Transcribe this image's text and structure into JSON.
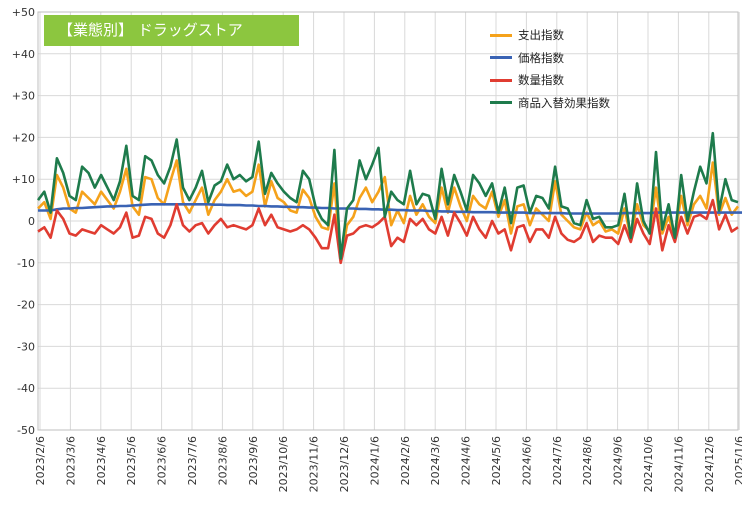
{
  "chart_data": {
    "type": "line",
    "title": "【業態別】 ドラッグストア",
    "ylim": [
      -50,
      50
    ],
    "yticks": [
      "+50",
      "+40",
      "+30",
      "+20",
      "+10",
      "0",
      "-10",
      "-20",
      "-30",
      "-40",
      "-50"
    ],
    "ytick_values": [
      50,
      40,
      30,
      20,
      10,
      0,
      -10,
      -20,
      -30,
      -40,
      -50
    ],
    "grid": true,
    "legend_position": "top-right",
    "xticks": [
      "2023/2/6",
      "2023/3/6",
      "2023/4/6",
      "2023/5/6",
      "2023/6/6",
      "2023/7/6",
      "2023/8/6",
      "2023/9/6",
      "2023/10/6",
      "2023/11/6",
      "2023/12/6",
      "2024/1/6",
      "2024/2/6",
      "2024/3/6",
      "2024/4/6",
      "2024/5/6",
      "2024/6/6",
      "2024/7/6",
      "2024/8/6",
      "2024/9/6",
      "2024/10/6",
      "2024/11/6",
      "2024/12/6",
      "2025/1/6"
    ],
    "series": [
      {
        "name": "支出指数",
        "color": "#f5a21b",
        "values": [
          3,
          4.5,
          0.5,
          11,
          8,
          3,
          2,
          7,
          5.5,
          4,
          7,
          5,
          3,
          7,
          12.5,
          3.5,
          1.5,
          10.5,
          10,
          5.5,
          4,
          9.5,
          14.5,
          4.5,
          2,
          5,
          8,
          1.5,
          5,
          7,
          10,
          7,
          7.5,
          6,
          7,
          13.5,
          3.5,
          9.5,
          5.5,
          4.5,
          2.5,
          2,
          7.5,
          5.5,
          1,
          -1.5,
          -2,
          9,
          -9.5,
          -1,
          1,
          5.5,
          8,
          4.5,
          7,
          10.5,
          -1,
          2.5,
          -0.5,
          6,
          1.5,
          4,
          1,
          -0.5,
          8,
          2,
          8,
          3.5,
          0,
          6,
          4,
          3,
          7,
          1,
          5,
          -3,
          3.5,
          4,
          -1,
          3,
          1.5,
          0,
          9.5,
          1.5,
          0,
          -1.5,
          -2,
          2,
          -1,
          0,
          -2.5,
          -2,
          -3,
          3,
          -4,
          4,
          -1,
          -2.5,
          8,
          -3,
          1,
          -4,
          6,
          -1,
          4,
          6,
          3,
          14,
          1.5,
          5.5,
          1.5,
          3.5
        ]
      },
      {
        "name": "価格指数",
        "color": "#3a63b4",
        "values": [
          2.5,
          2.5,
          2.5,
          2.8,
          3,
          3,
          3.1,
          3.1,
          3.2,
          3.3,
          3.4,
          3.5,
          3.5,
          3.6,
          3.6,
          3.7,
          3.8,
          3.9,
          4,
          4,
          4,
          4,
          4,
          4,
          4,
          4,
          4,
          4,
          3.9,
          3.9,
          3.8,
          3.8,
          3.8,
          3.7,
          3.7,
          3.6,
          3.6,
          3.5,
          3.5,
          3.4,
          3.4,
          3.3,
          3.3,
          3.2,
          3.2,
          3.1,
          3.1,
          3,
          3,
          3,
          3,
          2.9,
          2.9,
          2.8,
          2.8,
          2.7,
          2.7,
          2.6,
          2.6,
          2.5,
          2.5,
          2.5,
          2.4,
          2.4,
          2.3,
          2.3,
          2.2,
          2.2,
          2.2,
          2.1,
          2.1,
          2.1,
          2.1,
          2,
          2,
          2,
          2,
          2,
          1.9,
          1.9,
          1.9,
          1.9,
          1.9,
          1.9,
          1.8,
          1.8,
          1.8,
          1.8,
          1.8,
          1.8,
          1.8,
          1.8,
          1.8,
          1.9,
          1.9,
          1.9,
          1.9,
          1.9,
          2,
          2,
          2,
          2,
          2,
          2,
          2,
          2,
          2,
          2,
          2,
          2,
          2,
          2,
          2
        ]
      },
      {
        "name": "数量指数",
        "color": "#e03c31",
        "values": [
          -2.5,
          -1.5,
          -4,
          2.5,
          0.5,
          -3,
          -3.5,
          -2,
          -2.5,
          -3,
          -1,
          -2,
          -3,
          -1.5,
          2,
          -4,
          -3.5,
          1,
          0.5,
          -3,
          -4,
          -1,
          4,
          -1,
          -2.5,
          -1,
          -0.5,
          -3,
          -1,
          0.5,
          -1.5,
          -1,
          -1.5,
          -2,
          -1,
          3,
          -1,
          1.5,
          -1.5,
          -2,
          -2.5,
          -2,
          -1,
          -2,
          -4,
          -6.5,
          -6.5,
          1.5,
          -10,
          -3.5,
          -3,
          -1.5,
          -1,
          -1.5,
          -0.5,
          1,
          -6,
          -4,
          -5,
          0.5,
          -1,
          0.5,
          -2,
          -3,
          1,
          -3.5,
          2,
          -0.5,
          -3.5,
          1,
          -2,
          -4,
          0,
          -3,
          -2,
          -7,
          -1.5,
          -1,
          -5,
          -2,
          -2,
          -4,
          1,
          -3,
          -4.5,
          -5,
          -4,
          -0.5,
          -5,
          -3.5,
          -4,
          -4,
          -5.5,
          -1,
          -5,
          0.5,
          -3,
          -5.5,
          3,
          -7,
          -1,
          -5,
          1,
          -3,
          1,
          1.5,
          0.5,
          5,
          -2,
          1.5,
          -2.5,
          -1.5
        ]
      },
      {
        "name": "商品入替効果指数",
        "color": "#1e7b4c",
        "values": [
          5,
          7,
          2,
          15,
          11.5,
          6,
          5,
          13,
          11.5,
          8,
          11,
          8,
          5,
          9.5,
          18,
          6,
          5,
          15.5,
          14.5,
          11,
          9,
          13,
          19.5,
          8,
          5,
          8,
          12,
          4.5,
          8.5,
          9.5,
          13.5,
          10,
          11,
          9.5,
          10.5,
          19,
          6.5,
          11.5,
          9,
          7,
          5.5,
          4.5,
          12,
          10,
          3.5,
          0.5,
          -1,
          17,
          -9,
          3,
          5,
          14.5,
          10,
          13.5,
          17.5,
          1,
          7,
          5,
          4,
          12,
          4,
          6.5,
          6,
          0.5,
          12.5,
          4,
          11,
          7,
          2.5,
          11,
          9,
          6,
          9,
          2,
          8,
          -0.5,
          8,
          8.5,
          2,
          6,
          5.5,
          3,
          13,
          3.5,
          3,
          -0.5,
          -1,
          5,
          0.5,
          1,
          -1.5,
          -1.5,
          -1,
          6.5,
          -4,
          9,
          0,
          -3,
          16.5,
          -2,
          4,
          -4,
          11,
          0,
          7,
          13,
          9,
          21,
          2.5,
          10,
          5,
          4.5
        ]
      }
    ]
  }
}
